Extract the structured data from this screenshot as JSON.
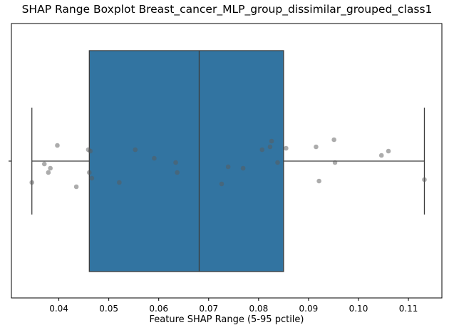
{
  "chart_data": {
    "type": "box",
    "title": "SHAP Range Boxplot Breast_cancer_MLP_group_dissimilar_grouped_class1",
    "xlabel": "Feature SHAP Range (5-95 pctile)",
    "ylabel": "",
    "xlim": [
      0.0305,
      0.1167
    ],
    "x_ticks": [
      0.04,
      0.05,
      0.06,
      0.07,
      0.08,
      0.09,
      0.1,
      0.11
    ],
    "x_tick_labels": [
      "0.04",
      "0.05",
      "0.06",
      "0.07",
      "0.08",
      "0.09",
      "0.10",
      "0.11"
    ],
    "y_ticks": [
      ""
    ],
    "box": {
      "whisker_low": 0.0346,
      "q1": 0.0461,
      "median": 0.0681,
      "q3": 0.085,
      "whisker_high": 0.1132,
      "color": "#3274a1"
    },
    "points": [
      {
        "x": 0.0346,
        "y": 0.15
      },
      {
        "x": 0.0371,
        "y": 0.02
      },
      {
        "x": 0.0379,
        "y": 0.08
      },
      {
        "x": 0.0383,
        "y": 0.05
      },
      {
        "x": 0.0397,
        "y": -0.11
      },
      {
        "x": 0.0435,
        "y": 0.18
      },
      {
        "x": 0.0459,
        "y": -0.08
      },
      {
        "x": 0.0461,
        "y": 0.08
      },
      {
        "x": 0.0463,
        "y": -0.07
      },
      {
        "x": 0.0466,
        "y": 0.12
      },
      {
        "x": 0.0521,
        "y": 0.15
      },
      {
        "x": 0.0553,
        "y": -0.08
      },
      {
        "x": 0.0591,
        "y": -0.02
      },
      {
        "x": 0.0634,
        "y": 0.01
      },
      {
        "x": 0.0637,
        "y": 0.08
      },
      {
        "x": 0.0726,
        "y": 0.16
      },
      {
        "x": 0.0739,
        "y": 0.04
      },
      {
        "x": 0.0769,
        "y": 0.05
      },
      {
        "x": 0.0807,
        "y": -0.08
      },
      {
        "x": 0.0823,
        "y": -0.1
      },
      {
        "x": 0.0826,
        "y": -0.14
      },
      {
        "x": 0.0838,
        "y": 0.01
      },
      {
        "x": 0.0855,
        "y": -0.09
      },
      {
        "x": 0.0915,
        "y": -0.1
      },
      {
        "x": 0.0921,
        "y": 0.14
      },
      {
        "x": 0.0951,
        "y": -0.15
      },
      {
        "x": 0.0953,
        "y": 0.01
      },
      {
        "x": 0.1046,
        "y": -0.04
      },
      {
        "x": 0.106,
        "y": -0.07
      },
      {
        "x": 0.1132,
        "y": 0.13
      }
    ],
    "point_color": "#5a5a5a",
    "grid": false,
    "legend": "none"
  }
}
